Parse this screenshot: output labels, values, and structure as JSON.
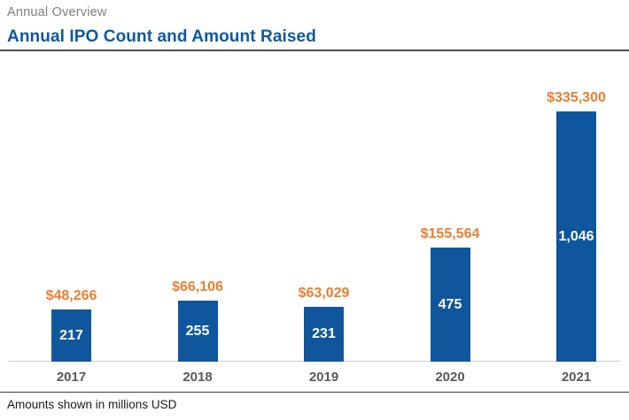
{
  "header": {
    "eyebrow": "Annual Overview",
    "title": "Annual IPO Count and Amount Raised"
  },
  "footer": {
    "note": "Amounts shown in millions USD"
  },
  "colors": {
    "bar_blue": "#10569d",
    "title_blue": "#0c59a3",
    "amount_orange": "#ed7d31",
    "eyebrow_gray": "#7f7f7f",
    "tick_gray": "#595959",
    "header_rule": "#4d4d4d",
    "axis_line": "#cbcbcb",
    "footer_rule": "#3d3d3d"
  },
  "chart_data": {
    "type": "bar",
    "title": "Annual IPO Count and Amount Raised",
    "subtitle": "Annual Overview",
    "categories": [
      "2017",
      "2018",
      "2019",
      "2020",
      "2021"
    ],
    "series": [
      {
        "name": "IPO Count",
        "role": "bar-height",
        "values": [
          217,
          255,
          231,
          475,
          1046
        ],
        "labels": [
          "217",
          "255",
          "231",
          "475",
          "1,046"
        ],
        "label_position": "inside-center",
        "label_color": "#ffffff",
        "bar_color": "#10569d"
      },
      {
        "name": "Amount Raised",
        "role": "label-above-bar",
        "values": [
          48266,
          66106,
          63029,
          155564,
          335300
        ],
        "labels": [
          "$48,266",
          "$66,106",
          "$63,029",
          "$155,564",
          "$335,300"
        ],
        "label_color": "#ed7d31",
        "unit": "millions USD"
      }
    ],
    "xlabel": "",
    "ylabel": "",
    "ylim": [
      0,
      1046
    ],
    "gridlines": false,
    "y_axis_visible": false,
    "x_axis_line_visible": true,
    "legend": "none",
    "note": "Amounts shown in millions USD"
  }
}
